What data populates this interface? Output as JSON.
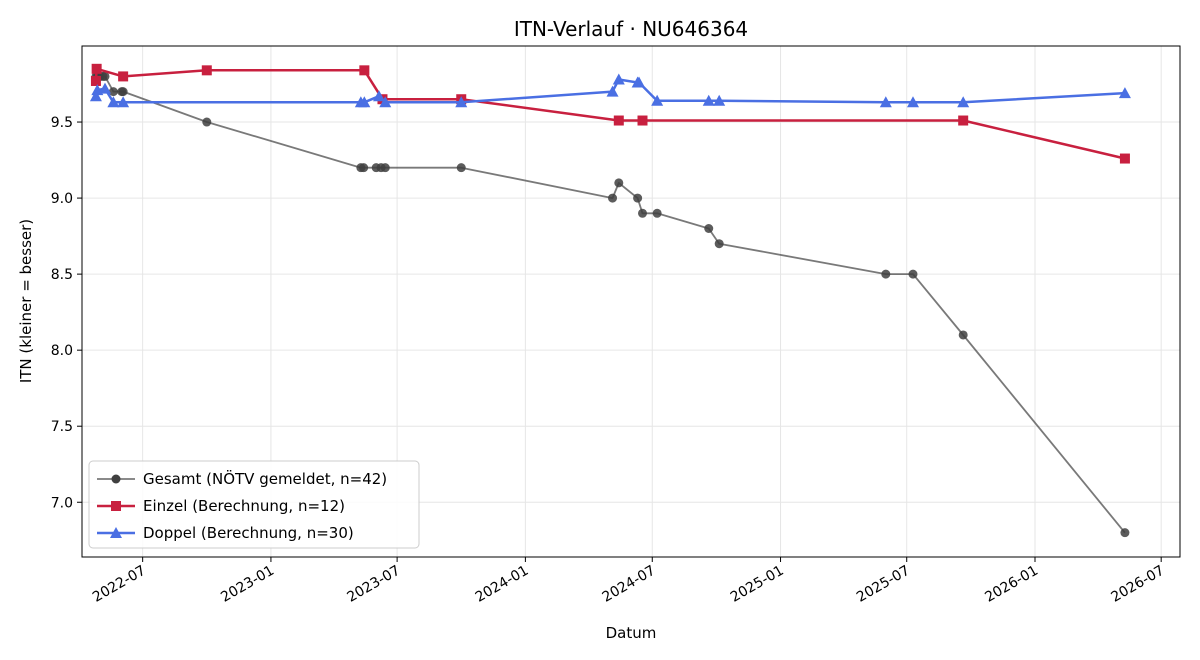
{
  "chart_data": {
    "type": "line",
    "title": "ITN-Verlauf · NU646364",
    "xlabel": "Datum",
    "ylabel": "ITN  (kleiner = besser)",
    "xlim": [
      "2022-04-05",
      "2026-07-28"
    ],
    "ylim": [
      6.64,
      10.0
    ],
    "x_ticks": [
      "2022-07",
      "2023-01",
      "2023-07",
      "2024-01",
      "2024-07",
      "2025-01",
      "2025-07",
      "2026-01",
      "2026-07"
    ],
    "y_ticks": [
      "7.0",
      "7.5",
      "8.0",
      "8.5",
      "9.0",
      "9.5"
    ],
    "grid": true,
    "legend_position": "bottom-left",
    "series": [
      {
        "name": "Gesamt (NÖTV gemeldet, n=42)",
        "color": "#404040",
        "marker": "circle",
        "points": [
          [
            "2022-04-25",
            9.8
          ],
          [
            "2022-04-27",
            9.8
          ],
          [
            "2022-04-29",
            9.8
          ],
          [
            "2022-05-01",
            9.8
          ],
          [
            "2022-05-05",
            9.8
          ],
          [
            "2022-05-08",
            9.8
          ],
          [
            "2022-05-20",
            9.7
          ],
          [
            "2022-06-01",
            9.7
          ],
          [
            "2022-06-03",
            9.7
          ],
          [
            "2022-10-01",
            9.5
          ],
          [
            "2023-05-10",
            9.2
          ],
          [
            "2023-05-14",
            9.2
          ],
          [
            "2023-06-01",
            9.2
          ],
          [
            "2023-06-08",
            9.2
          ],
          [
            "2023-06-14",
            9.2
          ],
          [
            "2023-10-01",
            9.2
          ],
          [
            "2024-05-05",
            9.0
          ],
          [
            "2024-05-14",
            9.1
          ],
          [
            "2024-06-10",
            9.0
          ],
          [
            "2024-06-17",
            8.9
          ],
          [
            "2024-07-08",
            8.9
          ],
          [
            "2024-09-20",
            8.8
          ],
          [
            "2024-10-05",
            8.7
          ],
          [
            "2025-06-01",
            8.5
          ],
          [
            "2025-07-10",
            8.5
          ],
          [
            "2025-09-20",
            8.1
          ],
          [
            "2026-05-10",
            6.8
          ]
        ]
      },
      {
        "name": "Einzel (Berechnung, n=12)",
        "color": "#c8203f",
        "marker": "square",
        "points": [
          [
            "2022-04-25",
            9.77
          ],
          [
            "2022-04-26",
            9.85
          ],
          [
            "2022-06-03",
            9.8
          ],
          [
            "2022-10-01",
            9.84
          ],
          [
            "2023-05-15",
            9.84
          ],
          [
            "2023-06-10",
            9.65
          ],
          [
            "2023-10-01",
            9.65
          ],
          [
            "2024-05-14",
            9.51
          ],
          [
            "2024-06-17",
            9.51
          ],
          [
            "2025-09-20",
            9.51
          ],
          [
            "2026-05-10",
            9.26
          ]
        ]
      },
      {
        "name": "Doppel (Berechnung, n=30)",
        "color": "#4a6fe3",
        "marker": "triangle",
        "points": [
          [
            "2022-04-25",
            9.67
          ],
          [
            "2022-04-27",
            9.71
          ],
          [
            "2022-05-08",
            9.72
          ],
          [
            "2022-05-20",
            9.63
          ],
          [
            "2022-06-03",
            9.63
          ],
          [
            "2023-05-10",
            9.63
          ],
          [
            "2023-05-15",
            9.63
          ],
          [
            "2023-06-05",
            9.67
          ],
          [
            "2023-06-14",
            9.63
          ],
          [
            "2023-10-01",
            9.63
          ],
          [
            "2024-05-05",
            9.7
          ],
          [
            "2024-05-14",
            9.78
          ],
          [
            "2024-06-10",
            9.76
          ],
          [
            "2024-06-12",
            9.76
          ],
          [
            "2024-07-08",
            9.64
          ],
          [
            "2024-09-20",
            9.64
          ],
          [
            "2024-10-05",
            9.64
          ],
          [
            "2025-06-01",
            9.63
          ],
          [
            "2025-07-10",
            9.63
          ],
          [
            "2025-09-20",
            9.63
          ],
          [
            "2026-05-10",
            9.69
          ]
        ]
      }
    ]
  }
}
